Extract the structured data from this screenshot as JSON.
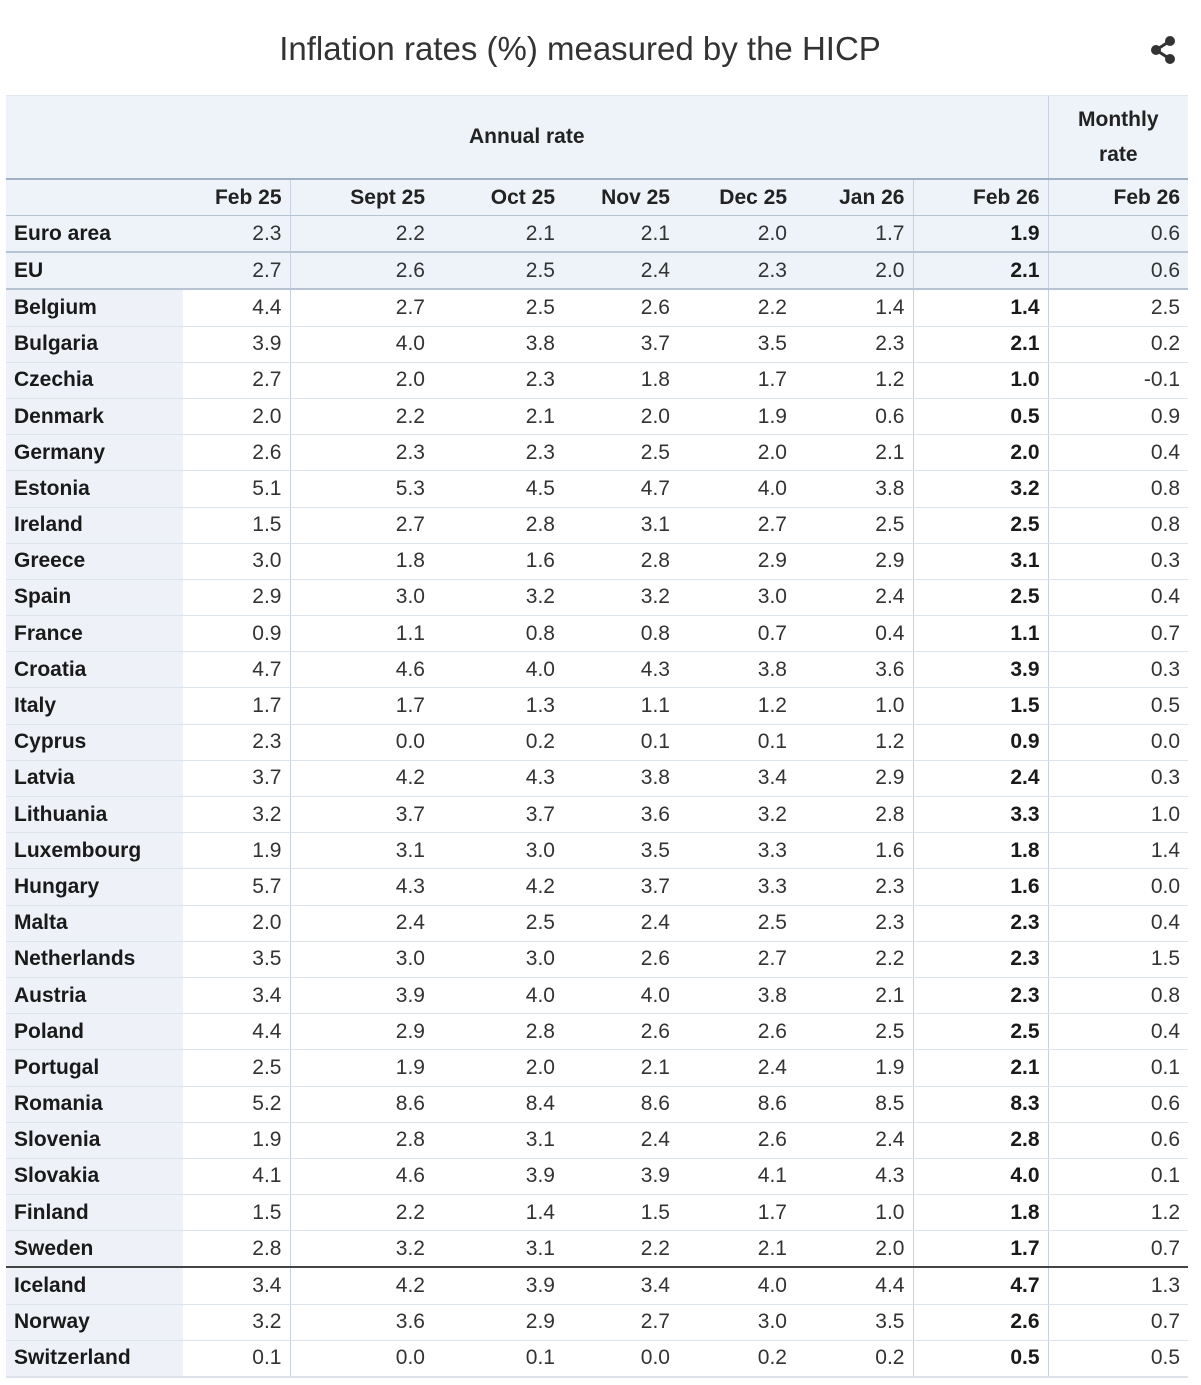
{
  "title": "Inflation rates (%) measured by the HICP",
  "share_icon": "share-icon",
  "header": {
    "annual": "Annual rate",
    "monthly": "Monthly rate",
    "columns": [
      "Feb 25",
      "Sept 25",
      "Oct 25",
      "Nov 25",
      "Dec 25",
      "Jan 26",
      "Feb 26",
      "Feb 26"
    ]
  },
  "rows": [
    [
      "Euro area",
      "2.3",
      "2.2",
      "2.1",
      "2.1",
      "2.0",
      "1.7",
      "1.9",
      "0.6"
    ],
    [
      "EU",
      "2.7",
      "2.6",
      "2.5",
      "2.4",
      "2.3",
      "2.0",
      "2.1",
      "0.6"
    ],
    [
      "Belgium",
      "4.4",
      "2.7",
      "2.5",
      "2.6",
      "2.2",
      "1.4",
      "1.4",
      "2.5"
    ],
    [
      "Bulgaria",
      "3.9",
      "4.0",
      "3.8",
      "3.7",
      "3.5",
      "2.3",
      "2.1",
      "0.2"
    ],
    [
      "Czechia",
      "2.7",
      "2.0",
      "2.3",
      "1.8",
      "1.7",
      "1.2",
      "1.0",
      "-0.1"
    ],
    [
      "Denmark",
      "2.0",
      "2.2",
      "2.1",
      "2.0",
      "1.9",
      "0.6",
      "0.5",
      "0.9"
    ],
    [
      "Germany",
      "2.6",
      "2.3",
      "2.3",
      "2.5",
      "2.0",
      "2.1",
      "2.0",
      "0.4"
    ],
    [
      "Estonia",
      "5.1",
      "5.3",
      "4.5",
      "4.7",
      "4.0",
      "3.8",
      "3.2",
      "0.8"
    ],
    [
      "Ireland",
      "1.5",
      "2.7",
      "2.8",
      "3.1",
      "2.7",
      "2.5",
      "2.5",
      "0.8"
    ],
    [
      "Greece",
      "3.0",
      "1.8",
      "1.6",
      "2.8",
      "2.9",
      "2.9",
      "3.1",
      "0.3"
    ],
    [
      "Spain",
      "2.9",
      "3.0",
      "3.2",
      "3.2",
      "3.0",
      "2.4",
      "2.5",
      "0.4"
    ],
    [
      "France",
      "0.9",
      "1.1",
      "0.8",
      "0.8",
      "0.7",
      "0.4",
      "1.1",
      "0.7"
    ],
    [
      "Croatia",
      "4.7",
      "4.6",
      "4.0",
      "4.3",
      "3.8",
      "3.6",
      "3.9",
      "0.3"
    ],
    [
      "Italy",
      "1.7",
      "1.7",
      "1.3",
      "1.1",
      "1.2",
      "1.0",
      "1.5",
      "0.5"
    ],
    [
      "Cyprus",
      "2.3",
      "0.0",
      "0.2",
      "0.1",
      "0.1",
      "1.2",
      "0.9",
      "0.0"
    ],
    [
      "Latvia",
      "3.7",
      "4.2",
      "4.3",
      "3.8",
      "3.4",
      "2.9",
      "2.4",
      "0.3"
    ],
    [
      "Lithuania",
      "3.2",
      "3.7",
      "3.7",
      "3.6",
      "3.2",
      "2.8",
      "3.3",
      "1.0"
    ],
    [
      "Luxembourg",
      "1.9",
      "3.1",
      "3.0",
      "3.5",
      "3.3",
      "1.6",
      "1.8",
      "1.4"
    ],
    [
      "Hungary",
      "5.7",
      "4.3",
      "4.2",
      "3.7",
      "3.3",
      "2.3",
      "1.6",
      "0.0"
    ],
    [
      "Malta",
      "2.0",
      "2.4",
      "2.5",
      "2.4",
      "2.5",
      "2.3",
      "2.3",
      "0.4"
    ],
    [
      "Netherlands",
      "3.5",
      "3.0",
      "3.0",
      "2.6",
      "2.7",
      "2.2",
      "2.3",
      "1.5"
    ],
    [
      "Austria",
      "3.4",
      "3.9",
      "4.0",
      "4.0",
      "3.8",
      "2.1",
      "2.3",
      "0.8"
    ],
    [
      "Poland",
      "4.4",
      "2.9",
      "2.8",
      "2.6",
      "2.6",
      "2.5",
      "2.5",
      "0.4"
    ],
    [
      "Portugal",
      "2.5",
      "1.9",
      "2.0",
      "2.1",
      "2.4",
      "1.9",
      "2.1",
      "0.1"
    ],
    [
      "Romania",
      "5.2",
      "8.6",
      "8.4",
      "8.6",
      "8.6",
      "8.5",
      "8.3",
      "0.6"
    ],
    [
      "Slovenia",
      "1.9",
      "2.8",
      "3.1",
      "2.4",
      "2.6",
      "2.4",
      "2.8",
      "0.6"
    ],
    [
      "Slovakia",
      "4.1",
      "4.6",
      "3.9",
      "3.9",
      "4.1",
      "4.3",
      "4.0",
      "0.1"
    ],
    [
      "Finland",
      "1.5",
      "2.2",
      "1.4",
      "1.5",
      "1.7",
      "1.0",
      "1.8",
      "1.2"
    ],
    [
      "Sweden",
      "2.8",
      "3.2",
      "3.1",
      "2.2",
      "2.1",
      "2.0",
      "1.7",
      "0.7"
    ],
    [
      "Iceland",
      "3.4",
      "4.2",
      "3.9",
      "3.4",
      "4.0",
      "4.4",
      "4.7",
      "1.3"
    ],
    [
      "Norway",
      "3.2",
      "3.6",
      "2.9",
      "2.7",
      "3.0",
      "3.5",
      "2.6",
      "0.7"
    ],
    [
      "Switzerland",
      "0.1",
      "0.0",
      "0.1",
      "0.0",
      "0.2",
      "0.2",
      "0.5",
      "0.5"
    ]
  ]
}
